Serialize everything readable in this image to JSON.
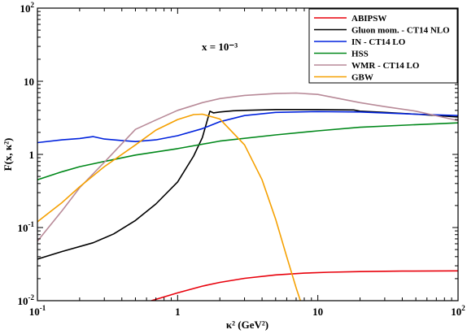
{
  "chart_data": {
    "type": "line",
    "xlabel": "κ² (GeV²)",
    "ylabel": "F(x, κ²)",
    "annotation": "x = 10⁻³",
    "xscale": "log",
    "yscale": "log",
    "xlim": [
      0.1,
      100
    ],
    "ylim": [
      0.01,
      100
    ],
    "grid": false,
    "legend_position": "top-right",
    "x_ticks": [
      {
        "base": "10",
        "exp": "-1"
      },
      {
        "base": "1",
        "exp": ""
      },
      {
        "base": "10",
        "exp": ""
      },
      {
        "base": "10",
        "exp": "2"
      }
    ],
    "y_ticks": [
      {
        "base": "10",
        "exp": "-2"
      },
      {
        "base": "10",
        "exp": "-1"
      },
      {
        "base": "1",
        "exp": ""
      },
      {
        "base": "10",
        "exp": ""
      },
      {
        "base": "10",
        "exp": "2"
      }
    ],
    "series": [
      {
        "name": "ABIPSW",
        "color": "#e8000b",
        "points": [
          [
            0.65,
            0.01
          ],
          [
            1.0,
            0.0128
          ],
          [
            1.5,
            0.0158
          ],
          [
            2.0,
            0.0178
          ],
          [
            3.0,
            0.0202
          ],
          [
            5.0,
            0.0225
          ],
          [
            8.0,
            0.0238
          ],
          [
            12.0,
            0.0245
          ],
          [
            20.0,
            0.025
          ],
          [
            40.0,
            0.0254
          ],
          [
            100.0,
            0.0256
          ]
        ]
      },
      {
        "name": "Gluon mom. - CT14 NLO",
        "color": "#000000",
        "points": [
          [
            0.1,
            0.037
          ],
          [
            0.15,
            0.047
          ],
          [
            0.25,
            0.062
          ],
          [
            0.35,
            0.082
          ],
          [
            0.5,
            0.125
          ],
          [
            0.7,
            0.21
          ],
          [
            1.0,
            0.42
          ],
          [
            1.3,
            0.95
          ],
          [
            1.5,
            1.7
          ],
          [
            1.7,
            3.9
          ],
          [
            1.8,
            3.7
          ],
          [
            2.0,
            3.8
          ],
          [
            2.5,
            3.95
          ],
          [
            3.0,
            4.0
          ],
          [
            5.0,
            4.1
          ],
          [
            10.0,
            4.1
          ],
          [
            18.0,
            4.05
          ],
          [
            20.0,
            3.9
          ],
          [
            30.0,
            3.75
          ],
          [
            50.0,
            3.55
          ],
          [
            100.0,
            3.25
          ]
        ]
      },
      {
        "name": "IN - CT14 LO",
        "color": "#0022dd",
        "points": [
          [
            0.1,
            1.45
          ],
          [
            0.15,
            1.58
          ],
          [
            0.2,
            1.65
          ],
          [
            0.25,
            1.75
          ],
          [
            0.3,
            1.62
          ],
          [
            0.4,
            1.55
          ],
          [
            0.5,
            1.5
          ],
          [
            0.7,
            1.58
          ],
          [
            1.0,
            1.8
          ],
          [
            1.5,
            2.25
          ],
          [
            2.0,
            2.8
          ],
          [
            3.0,
            3.4
          ],
          [
            5.0,
            3.75
          ],
          [
            10.0,
            3.85
          ],
          [
            20.0,
            3.8
          ],
          [
            50.0,
            3.55
          ],
          [
            100.0,
            3.4
          ]
        ]
      },
      {
        "name": "HSS",
        "color": "#00881a",
        "points": [
          [
            0.1,
            0.45
          ],
          [
            0.15,
            0.58
          ],
          [
            0.2,
            0.68
          ],
          [
            0.3,
            0.8
          ],
          [
            0.5,
            0.98
          ],
          [
            1.0,
            1.2
          ],
          [
            2.0,
            1.52
          ],
          [
            5.0,
            1.85
          ],
          [
            10.0,
            2.1
          ],
          [
            20.0,
            2.35
          ],
          [
            50.0,
            2.55
          ],
          [
            100.0,
            2.7
          ]
        ]
      },
      {
        "name": "WMR - CT14 LO",
        "color": "#b88a98",
        "points": [
          [
            0.1,
            0.065
          ],
          [
            0.15,
            0.17
          ],
          [
            0.2,
            0.35
          ],
          [
            0.3,
            0.78
          ],
          [
            0.4,
            1.4
          ],
          [
            0.5,
            2.2
          ],
          [
            0.7,
            2.95
          ],
          [
            1.0,
            4.0
          ],
          [
            1.5,
            5.1
          ],
          [
            2.0,
            5.8
          ],
          [
            3.0,
            6.4
          ],
          [
            5.0,
            6.8
          ],
          [
            7.0,
            6.9
          ],
          [
            10.0,
            6.6
          ],
          [
            20.0,
            5.1
          ],
          [
            30.0,
            4.5
          ],
          [
            50.0,
            3.9
          ],
          [
            100.0,
            2.9
          ]
        ]
      },
      {
        "name": "GBW",
        "color": "#f5a000",
        "points": [
          [
            0.1,
            0.12
          ],
          [
            0.15,
            0.22
          ],
          [
            0.2,
            0.36
          ],
          [
            0.3,
            0.68
          ],
          [
            0.5,
            1.35
          ],
          [
            0.7,
            2.15
          ],
          [
            1.0,
            3.0
          ],
          [
            1.3,
            3.5
          ],
          [
            1.5,
            3.55
          ],
          [
            2.0,
            3.05
          ],
          [
            3.0,
            1.35
          ],
          [
            4.0,
            0.45
          ],
          [
            5.0,
            0.13
          ],
          [
            6.0,
            0.04
          ],
          [
            7.0,
            0.015
          ],
          [
            7.8,
            0.008
          ]
        ]
      }
    ]
  }
}
